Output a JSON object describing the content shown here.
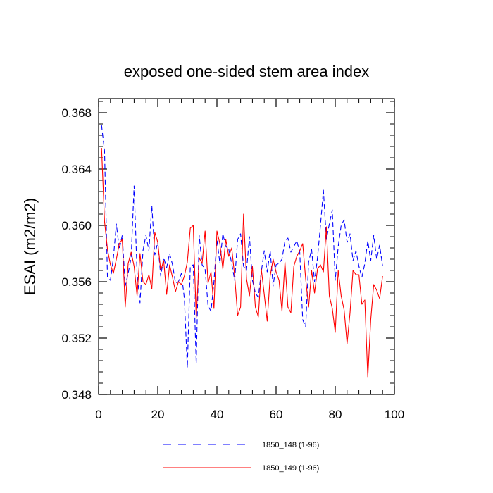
{
  "chart_data": {
    "type": "line",
    "title": "exposed one-sided stem area index",
    "ylabel": "ESAI  (m2/m2)",
    "xlabel": "",
    "xlim": [
      0,
      100
    ],
    "ylim": [
      0.348,
      0.369
    ],
    "xticks": [
      0,
      20,
      40,
      60,
      80,
      100
    ],
    "xtick_labels": [
      "0",
      "20",
      "40",
      "60",
      "80",
      "100"
    ],
    "yticks": [
      0.348,
      0.352,
      0.356,
      0.36,
      0.364,
      0.368
    ],
    "ytick_labels": [
      "0.348",
      "0.352",
      "0.356",
      "0.360",
      "0.364",
      "0.368"
    ],
    "grid": false,
    "legend_position": "bottom",
    "series": [
      {
        "name": "1850_148 (1-96)",
        "color": "#0000ff",
        "style": "dashed",
        "x": [
          1,
          2,
          3,
          4,
          5,
          6,
          7,
          8,
          9,
          10,
          11,
          12,
          13,
          14,
          15,
          16,
          17,
          18,
          19,
          20,
          21,
          22,
          23,
          24,
          25,
          26,
          27,
          28,
          29,
          30,
          31,
          32,
          33,
          34,
          35,
          36,
          37,
          38,
          39,
          40,
          41,
          42,
          43,
          44,
          45,
          46,
          47,
          48,
          49,
          50,
          51,
          52,
          53,
          54,
          55,
          56,
          57,
          58,
          59,
          60,
          61,
          62,
          63,
          64,
          65,
          66,
          67,
          68,
          69,
          70,
          71,
          72,
          73,
          74,
          75,
          76,
          77,
          78,
          79,
          80,
          81,
          82,
          83,
          84,
          85,
          86,
          87,
          88,
          89,
          90,
          91,
          92,
          93,
          94,
          95,
          96
        ],
        "values": [
          0.3671,
          0.3653,
          0.3563,
          0.3561,
          0.3577,
          0.3601,
          0.3583,
          0.3593,
          0.3557,
          0.3566,
          0.3577,
          0.3628,
          0.3566,
          0.3545,
          0.3582,
          0.3593,
          0.3582,
          0.3614,
          0.3579,
          0.3588,
          0.3564,
          0.3577,
          0.357,
          0.358,
          0.3572,
          0.3559,
          0.356,
          0.3566,
          0.3548,
          0.3499,
          0.3571,
          0.3572,
          0.3502,
          0.3593,
          0.3572,
          0.3569,
          0.3543,
          0.3539,
          0.356,
          0.359,
          0.3573,
          0.3594,
          0.3585,
          0.3583,
          0.3573,
          0.3561,
          0.359,
          0.3594,
          0.3571,
          0.3568,
          0.3592,
          0.3561,
          0.3552,
          0.3549,
          0.3567,
          0.3582,
          0.3567,
          0.3582,
          0.3557,
          0.3572,
          0.3573,
          0.3576,
          0.3589,
          0.3591,
          0.3581,
          0.3585,
          0.3589,
          0.3581,
          0.3533,
          0.3528,
          0.3574,
          0.3583,
          0.356,
          0.3577,
          0.36,
          0.3625,
          0.359,
          0.3601,
          0.3611,
          0.3561,
          0.3585,
          0.36,
          0.3604,
          0.3588,
          0.3594,
          0.3575,
          0.3582,
          0.3571,
          0.3563,
          0.3573,
          0.3589,
          0.3575,
          0.3593,
          0.3576,
          0.3586,
          0.3571
        ]
      },
      {
        "name": "1850_149 (1-96)",
        "color": "#ff0000",
        "style": "solid",
        "x": [
          1,
          2,
          3,
          4,
          5,
          6,
          7,
          8,
          9,
          10,
          11,
          12,
          13,
          14,
          15,
          16,
          17,
          18,
          19,
          20,
          21,
          22,
          23,
          24,
          25,
          26,
          27,
          28,
          29,
          30,
          31,
          32,
          33,
          34,
          35,
          36,
          37,
          38,
          39,
          40,
          41,
          42,
          43,
          44,
          45,
          46,
          47,
          48,
          49,
          50,
          51,
          52,
          53,
          54,
          55,
          56,
          57,
          58,
          59,
          60,
          61,
          62,
          63,
          64,
          65,
          66,
          67,
          68,
          69,
          70,
          71,
          72,
          73,
          74,
          75,
          76,
          77,
          78,
          79,
          80,
          81,
          82,
          83,
          84,
          85,
          86,
          87,
          88,
          89,
          90,
          91,
          92,
          93,
          94,
          95,
          96
        ],
        "values": [
          0.3655,
          0.3603,
          0.3583,
          0.3572,
          0.3566,
          0.3576,
          0.3587,
          0.359,
          0.3542,
          0.3573,
          0.3581,
          0.3571,
          0.355,
          0.358,
          0.356,
          0.3558,
          0.3565,
          0.3555,
          0.3595,
          0.3588,
          0.3568,
          0.3575,
          0.3551,
          0.3572,
          0.3563,
          0.3553,
          0.356,
          0.3558,
          0.3564,
          0.3574,
          0.3598,
          0.36,
          0.3534,
          0.3577,
          0.3573,
          0.3596,
          0.3559,
          0.3567,
          0.3541,
          0.3596,
          0.3587,
          0.3569,
          0.359,
          0.3578,
          0.3584,
          0.3564,
          0.3536,
          0.3542,
          0.3608,
          0.3562,
          0.355,
          0.3571,
          0.3542,
          0.3535,
          0.3569,
          0.3551,
          0.3532,
          0.3564,
          0.3576,
          0.3567,
          0.3561,
          0.3539,
          0.3574,
          0.3542,
          0.3538,
          0.3571,
          0.3578,
          0.3582,
          0.3587,
          0.3562,
          0.3542,
          0.3568,
          0.3552,
          0.3569,
          0.3572,
          0.3567,
          0.3599,
          0.355,
          0.3541,
          0.3524,
          0.3568,
          0.355,
          0.354,
          0.3516,
          0.3538,
          0.3568,
          0.3565,
          0.3565,
          0.3544,
          0.3547,
          0.3492,
          0.3533,
          0.3558,
          0.3554,
          0.3548,
          0.3564
        ]
      }
    ]
  }
}
